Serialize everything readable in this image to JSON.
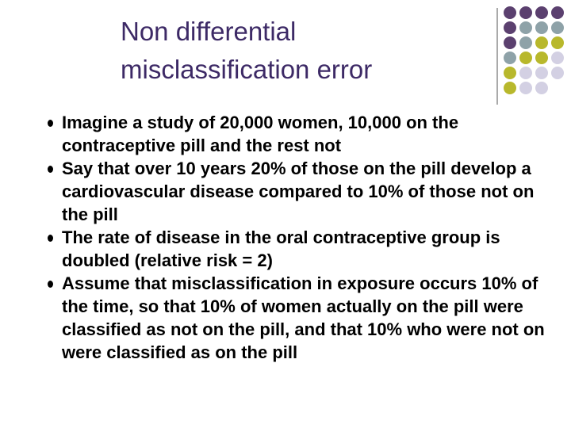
{
  "header": {
    "title_lines": [
      "Non differential",
      "misclassification error"
    ]
  },
  "bullets": [
    "Imagine a study of 20,000 women, 10,000 on the contraceptive pill and the rest not",
    "Say that over 10 years 20% of those on the pill develop a cardiovascular disease compared to 10% of those not on the pill",
    "The rate of disease in the oral contraceptive group is doubled (relative risk = 2)",
    "Assume that misclassification in exposure occurs 10% of the time, so that 10% of women actually on the pill were classified as not on the pill, and that 10% who were not on were classified as on the pill"
  ]
}
